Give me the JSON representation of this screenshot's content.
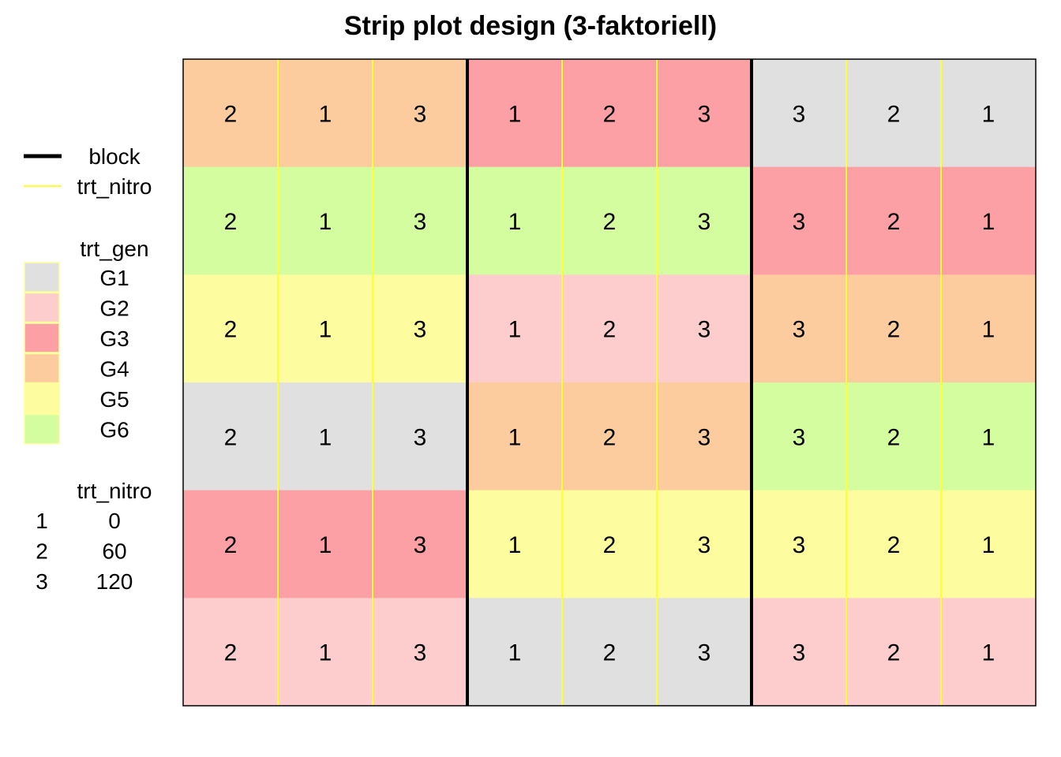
{
  "chart_data": {
    "type": "heatmap",
    "title": "Strip plot design (3-faktoriell)",
    "blocks": [
      {
        "rows": [
          {
            "trt_gen": "G4",
            "trt_nitro": [
              2,
              1,
              3
            ]
          },
          {
            "trt_gen": "G6",
            "trt_nitro": [
              2,
              1,
              3
            ]
          },
          {
            "trt_gen": "G5",
            "trt_nitro": [
              2,
              1,
              3
            ]
          },
          {
            "trt_gen": "G1",
            "trt_nitro": [
              2,
              1,
              3
            ]
          },
          {
            "trt_gen": "G3",
            "trt_nitro": [
              2,
              1,
              3
            ]
          },
          {
            "trt_gen": "G2",
            "trt_nitro": [
              2,
              1,
              3
            ]
          }
        ]
      },
      {
        "rows": [
          {
            "trt_gen": "G3",
            "trt_nitro": [
              1,
              2,
              3
            ]
          },
          {
            "trt_gen": "G6",
            "trt_nitro": [
              1,
              2,
              3
            ]
          },
          {
            "trt_gen": "G2",
            "trt_nitro": [
              1,
              2,
              3
            ]
          },
          {
            "trt_gen": "G4",
            "trt_nitro": [
              1,
              2,
              3
            ]
          },
          {
            "trt_gen": "G5",
            "trt_nitro": [
              1,
              2,
              3
            ]
          },
          {
            "trt_gen": "G1",
            "trt_nitro": [
              1,
              2,
              3
            ]
          }
        ]
      },
      {
        "rows": [
          {
            "trt_gen": "G1",
            "trt_nitro": [
              3,
              2,
              1
            ]
          },
          {
            "trt_gen": "G3",
            "trt_nitro": [
              3,
              2,
              1
            ]
          },
          {
            "trt_gen": "G4",
            "trt_nitro": [
              3,
              2,
              1
            ]
          },
          {
            "trt_gen": "G6",
            "trt_nitro": [
              3,
              2,
              1
            ]
          },
          {
            "trt_gen": "G5",
            "trt_nitro": [
              3,
              2,
              1
            ]
          },
          {
            "trt_gen": "G2",
            "trt_nitro": [
              3,
              2,
              1
            ]
          }
        ]
      }
    ],
    "colors": {
      "G1": "#e0e0e0",
      "G2": "#fdcccc",
      "G3": "#fca0a5",
      "G4": "#fccc9f",
      "G5": "#fdfd9f",
      "G6": "#d4fd9f",
      "block_line": "#000000",
      "nitro_line": "#ffff33"
    },
    "legend": {
      "lines": [
        {
          "label": "block",
          "color": "#000000",
          "style": "thick"
        },
        {
          "label": "trt_nitro",
          "color": "#ffff33",
          "style": "thin"
        }
      ],
      "gen_title": "trt_gen",
      "gen_items": [
        "G1",
        "G2",
        "G3",
        "G4",
        "G5",
        "G6"
      ],
      "nitro_title": "trt_nitro",
      "nitro_levels": [
        {
          "code": "1",
          "value": "0"
        },
        {
          "code": "2",
          "value": "60"
        },
        {
          "code": "3",
          "value": "120"
        }
      ],
      "placement": "left"
    }
  }
}
